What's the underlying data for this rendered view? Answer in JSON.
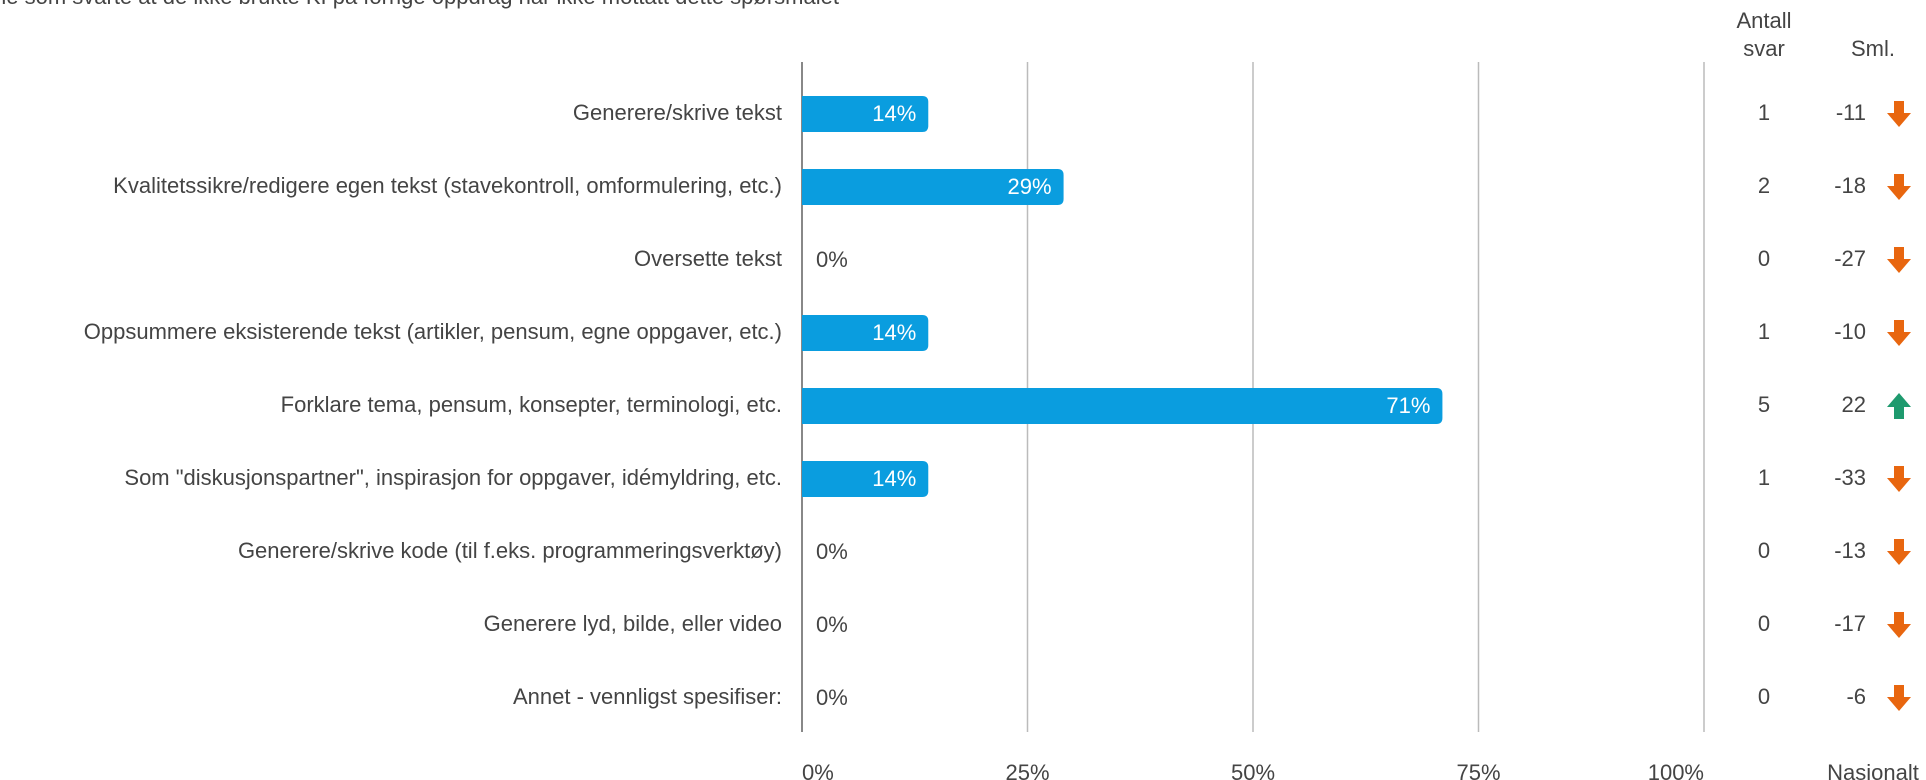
{
  "chart_data": {
    "type": "bar",
    "orientation": "horizontal",
    "subtitle": "ne som svarte at de ikke brukte KI på forrige oppdrag har ikke mottatt dette spørsmålet",
    "categories": [
      "Generere/skrive tekst",
      "Kvalitetssikre/redigere egen tekst (stavekontroll, omformulering, etc.)",
      "Oversette tekst",
      "Oppsummere eksisterende tekst (artikler, pensum, egne oppgaver, etc.)",
      "Forklare tema, pensum, konsepter, terminologi, etc.",
      "Som \"diskusjonspartner\", inspirasjon for oppgaver, idémyldring, etc.",
      "Generere/skrive kode (til f.eks. programmeringsverktøy)",
      "Generere lyd, bilde, eller video",
      "Annet - vennligst spesifiser:"
    ],
    "values": [
      14,
      29,
      0,
      14,
      71,
      14,
      0,
      0,
      0
    ],
    "value_labels": [
      "14%",
      "29%",
      "0%",
      "14%",
      "71%",
      "14%",
      "0%",
      "0%",
      "0%"
    ],
    "color": "#0a9ddf",
    "xlim": [
      0,
      100
    ],
    "xticks": [
      {
        "value": 0,
        "label": "0%"
      },
      {
        "value": 25,
        "label": "25%"
      },
      {
        "value": 50,
        "label": "50%"
      },
      {
        "value": 75,
        "label": "75%"
      },
      {
        "value": 100,
        "label": "100%"
      }
    ],
    "grid": true,
    "count_header": [
      "Antall",
      "svar"
    ],
    "counts": [
      1,
      2,
      0,
      1,
      5,
      1,
      0,
      0,
      0
    ],
    "comparison_header": "Sml.",
    "comparison": [
      -11,
      -18,
      -27,
      -10,
      22,
      -33,
      -13,
      -17,
      -6
    ],
    "comparison_footer": "Nasjonalt",
    "up_color": "#1e9a6e",
    "down_color": "#e8660f"
  }
}
